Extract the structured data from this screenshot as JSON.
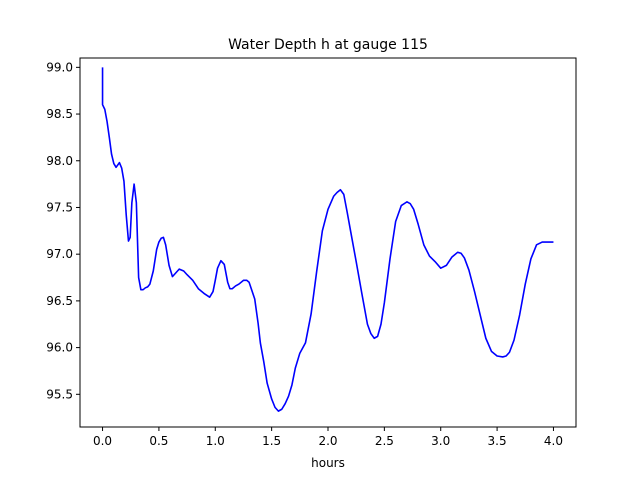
{
  "chart_data": {
    "type": "line",
    "title": "Water Depth h at gauge 115",
    "xlabel": "hours",
    "ylabel": "",
    "xlim": [
      -0.2,
      4.2
    ],
    "ylim": [
      95.15,
      99.1
    ],
    "grid": false,
    "color": "#0000ff",
    "xticks": [
      {
        "value": 0.0,
        "label": "0.0"
      },
      {
        "value": 0.5,
        "label": "0.5"
      },
      {
        "value": 1.0,
        "label": "1.0"
      },
      {
        "value": 1.5,
        "label": "1.5"
      },
      {
        "value": 2.0,
        "label": "2.0"
      },
      {
        "value": 2.5,
        "label": "2.5"
      },
      {
        "value": 3.0,
        "label": "3.0"
      },
      {
        "value": 3.5,
        "label": "3.5"
      },
      {
        "value": 4.0,
        "label": "4.0"
      }
    ],
    "yticks": [
      {
        "value": 95.5,
        "label": "95.5"
      },
      {
        "value": 96.0,
        "label": "96.0"
      },
      {
        "value": 96.5,
        "label": "96.5"
      },
      {
        "value": 97.0,
        "label": "97.0"
      },
      {
        "value": 97.5,
        "label": "97.5"
      },
      {
        "value": 98.0,
        "label": "98.0"
      },
      {
        "value": 98.5,
        "label": "98.5"
      },
      {
        "value": 99.0,
        "label": "99.0"
      }
    ],
    "series": [
      {
        "x": [
          0.0,
          0.0,
          0.0,
          0.02,
          0.04,
          0.06,
          0.08,
          0.1,
          0.12,
          0.15,
          0.17,
          0.19,
          0.21,
          0.23,
          0.245,
          0.26,
          0.28,
          0.3,
          0.32,
          0.34,
          0.36,
          0.38,
          0.4,
          0.42,
          0.45,
          0.48,
          0.5,
          0.52,
          0.54,
          0.56,
          0.59,
          0.62,
          0.65,
          0.68,
          0.72,
          0.75,
          0.8,
          0.85,
          0.9,
          0.95,
          0.98,
          1.0,
          1.02,
          1.05,
          1.08,
          1.11,
          1.13,
          1.15,
          1.18,
          1.21,
          1.25,
          1.28,
          1.3,
          1.35,
          1.38,
          1.4,
          1.43,
          1.46,
          1.5,
          1.53,
          1.56,
          1.59,
          1.62,
          1.65,
          1.68,
          1.71,
          1.75,
          1.8,
          1.85,
          1.9,
          1.95,
          2.0,
          2.05,
          2.08,
          2.11,
          2.14,
          2.17,
          2.2,
          2.25,
          2.3,
          2.35,
          2.38,
          2.41,
          2.44,
          2.47,
          2.5,
          2.55,
          2.6,
          2.65,
          2.7,
          2.73,
          2.76,
          2.8,
          2.85,
          2.9,
          2.95,
          3.0,
          3.05,
          3.1,
          3.15,
          3.18,
          3.21,
          3.25,
          3.3,
          3.35,
          3.4,
          3.45,
          3.5,
          3.55,
          3.58,
          3.61,
          3.65,
          3.7,
          3.75,
          3.8,
          3.85,
          3.9,
          3.95,
          4.0
        ],
        "y": [
          99.0,
          98.62,
          98.6,
          98.55,
          98.42,
          98.25,
          98.07,
          97.97,
          97.93,
          97.98,
          97.92,
          97.78,
          97.42,
          97.14,
          97.18,
          97.55,
          97.75,
          97.55,
          96.75,
          96.62,
          96.62,
          96.64,
          96.65,
          96.68,
          96.82,
          97.05,
          97.13,
          97.17,
          97.18,
          97.1,
          96.88,
          96.76,
          96.8,
          96.84,
          96.82,
          96.78,
          96.72,
          96.63,
          96.58,
          96.54,
          96.6,
          96.72,
          96.85,
          96.93,
          96.89,
          96.7,
          96.63,
          96.63,
          96.66,
          96.68,
          96.72,
          96.72,
          96.7,
          96.52,
          96.26,
          96.05,
          95.85,
          95.62,
          95.45,
          95.36,
          95.32,
          95.34,
          95.4,
          95.48,
          95.6,
          95.78,
          95.94,
          96.05,
          96.36,
          96.82,
          97.25,
          97.48,
          97.62,
          97.66,
          97.69,
          97.64,
          97.45,
          97.25,
          96.92,
          96.58,
          96.25,
          96.15,
          96.1,
          96.12,
          96.25,
          96.48,
          96.95,
          97.35,
          97.52,
          97.56,
          97.54,
          97.48,
          97.32,
          97.1,
          96.98,
          96.92,
          96.85,
          96.88,
          96.97,
          97.02,
          97.01,
          96.96,
          96.83,
          96.6,
          96.35,
          96.1,
          95.96,
          95.91,
          95.9,
          95.91,
          95.95,
          96.08,
          96.35,
          96.68,
          96.95,
          97.1,
          97.13,
          97.13,
          97.13
        ]
      }
    ]
  }
}
